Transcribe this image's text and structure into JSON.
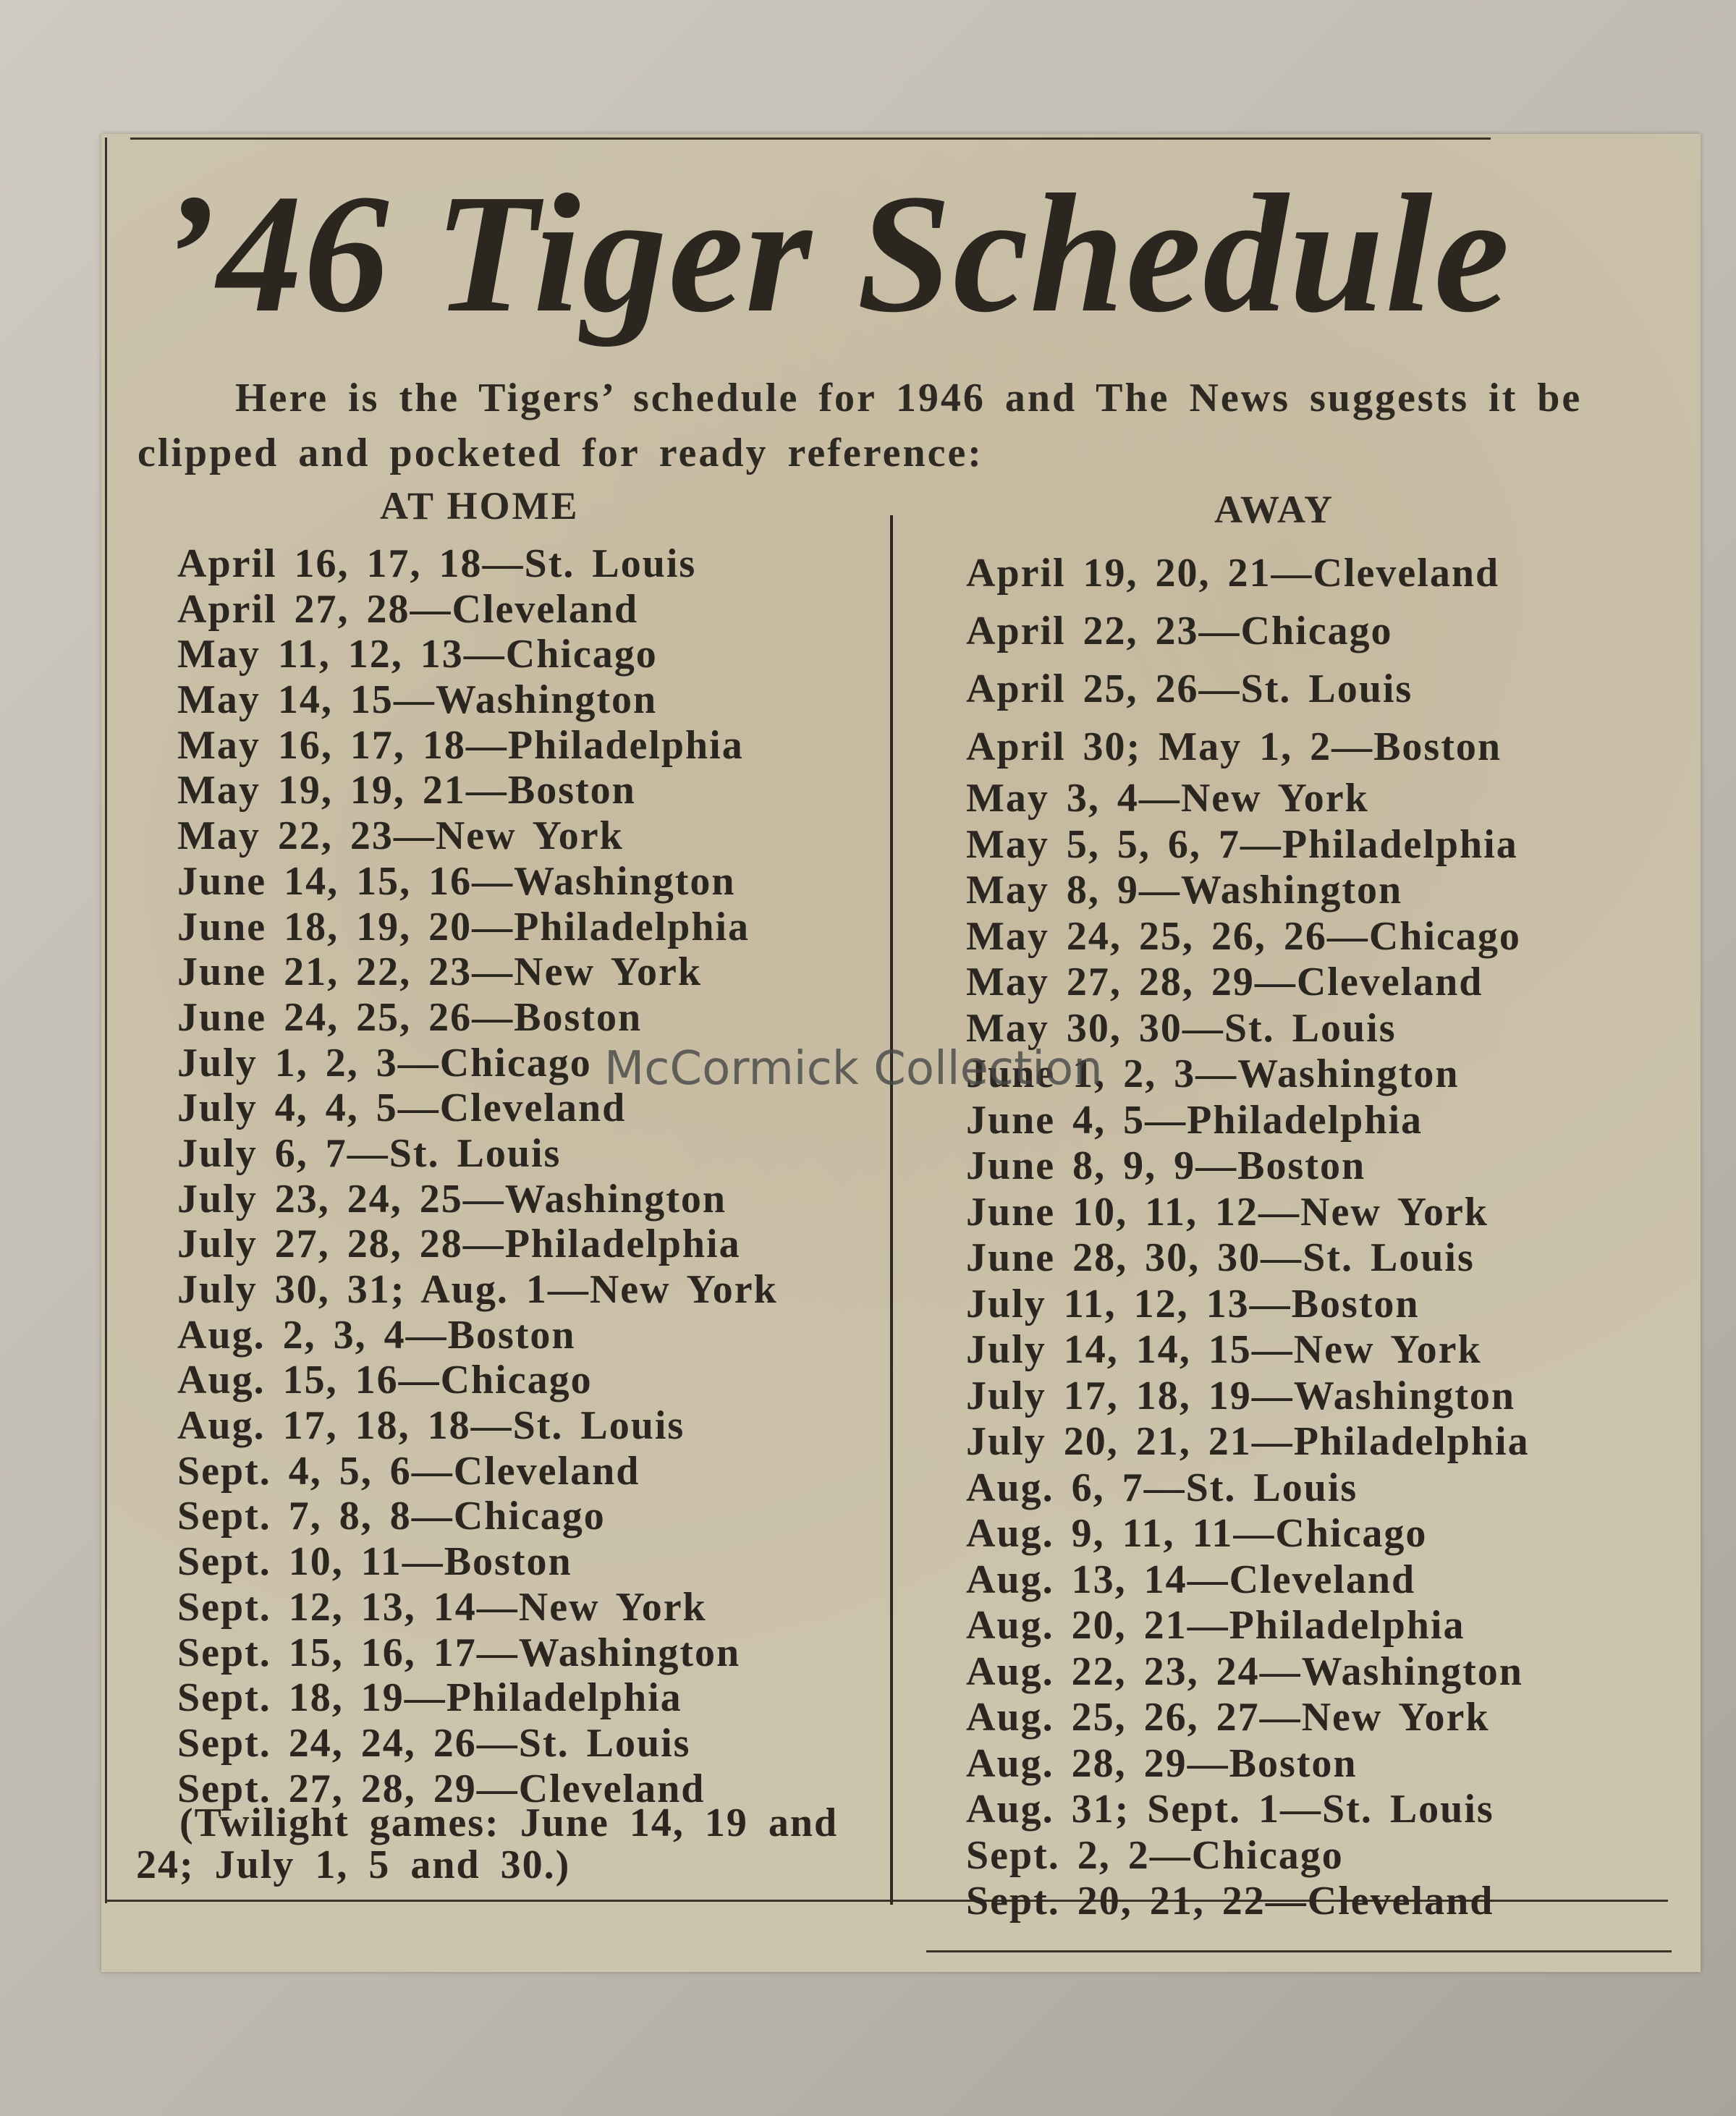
{
  "title": "’46 Tiger Schedule",
  "intro": "Here is the Tigers’ schedule for 1946 and The News suggests it be clipped and pocketed for ready reference:",
  "home": {
    "heading": "AT HOME",
    "games": [
      "April 16, 17, 18—St. Louis",
      "April 27, 28—Cleveland",
      "May 11, 12, 13—Chicago",
      "May 14, 15—Washington",
      "May 16, 17, 18—Philadelphia",
      "May 19, 19, 21—Boston",
      "May 22, 23—New York",
      "June 14, 15, 16—Washington",
      "June 18, 19, 20—Philadelphia",
      "June 21, 22, 23—New York",
      "June 24, 25, 26—Boston",
      "July 1, 2, 3—Chicago",
      "July 4, 4, 5—Cleveland",
      "July 6, 7—St. Louis",
      "July 23, 24, 25—Washington",
      "July 27, 28, 28—Philadelphia",
      "July 30, 31; Aug. 1—New York",
      "Aug. 2, 3, 4—Boston",
      "Aug. 15, 16—Chicago",
      "Aug. 17, 18, 18—St. Louis",
      "Sept. 4, 5, 6—Cleveland",
      "Sept. 7, 8, 8—Chicago",
      "Sept. 10, 11—Boston",
      "Sept. 12, 13, 14—New York",
      "Sept. 15, 16, 17—Washington",
      "Sept. 18, 19—Philadelphia",
      "Sept. 24, 24, 26—St. Louis",
      "Sept. 27, 28, 29—Cleveland"
    ],
    "note": "(Twilight games: June 14, 19 and 24; July 1, 5 and 30.)"
  },
  "away": {
    "heading": "AWAY",
    "games": [
      "April 19, 20, 21—Cleveland",
      "April 22, 23—Chicago",
      "April 25, 26—St. Louis",
      "April 30; May 1, 2—Boston",
      "May 3, 4—New York",
      "May 5, 5, 6, 7—Philadelphia",
      "May 8, 9—Washington",
      "May 24, 25, 26, 26—Chicago",
      "May 27, 28, 29—Cleveland",
      "May 30, 30—St. Louis",
      "June 1, 2, 3—Washington",
      "June 4, 5—Philadelphia",
      "June 8, 9, 9—Boston",
      "June 10, 11, 12—New York",
      "June 28, 30, 30—St. Louis",
      "July 11, 12, 13—Boston",
      "July 14, 14, 15—New York",
      "July 17, 18, 19—Washington",
      "July 20, 21, 21—Philadelphia",
      "Aug. 6, 7—St. Louis",
      "Aug. 9, 11, 11—Chicago",
      "Aug. 13, 14—Cleveland",
      "Aug. 20, 21—Philadelphia",
      "Aug. 22, 23, 24—Washington",
      "Aug. 25, 26, 27—New York",
      "Aug. 28, 29—Boston",
      "Aug. 31; Sept. 1—St. Louis",
      "Sept. 2, 2—Chicago",
      "Sept. 20, 21, 22—Cleveland"
    ]
  },
  "watermark": "McCormick Collection",
  "colors": {
    "paper": "#cdc4ae",
    "ink": "#2b2620",
    "mount": "#c4bfb5"
  }
}
